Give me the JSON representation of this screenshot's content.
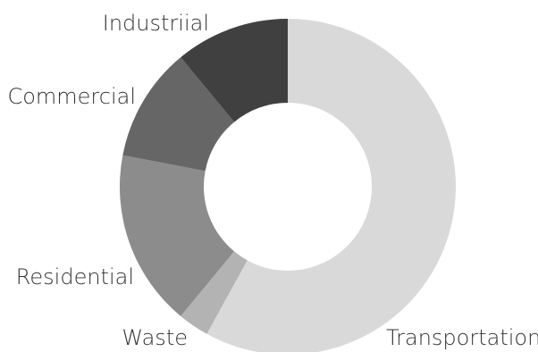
{
  "chart_data": {
    "type": "pie",
    "variant": "donut",
    "categories": [
      "Transportation",
      "Waste",
      "Residential",
      "Commercial",
      "Industriial"
    ],
    "values": [
      58,
      3,
      17,
      11,
      11
    ],
    "colors": [
      "#d9d9d9",
      "#b3b3b3",
      "#8c8c8c",
      "#666666",
      "#404040"
    ],
    "start": "12 o'clock",
    "direction": "clockwise",
    "legend": "none"
  }
}
